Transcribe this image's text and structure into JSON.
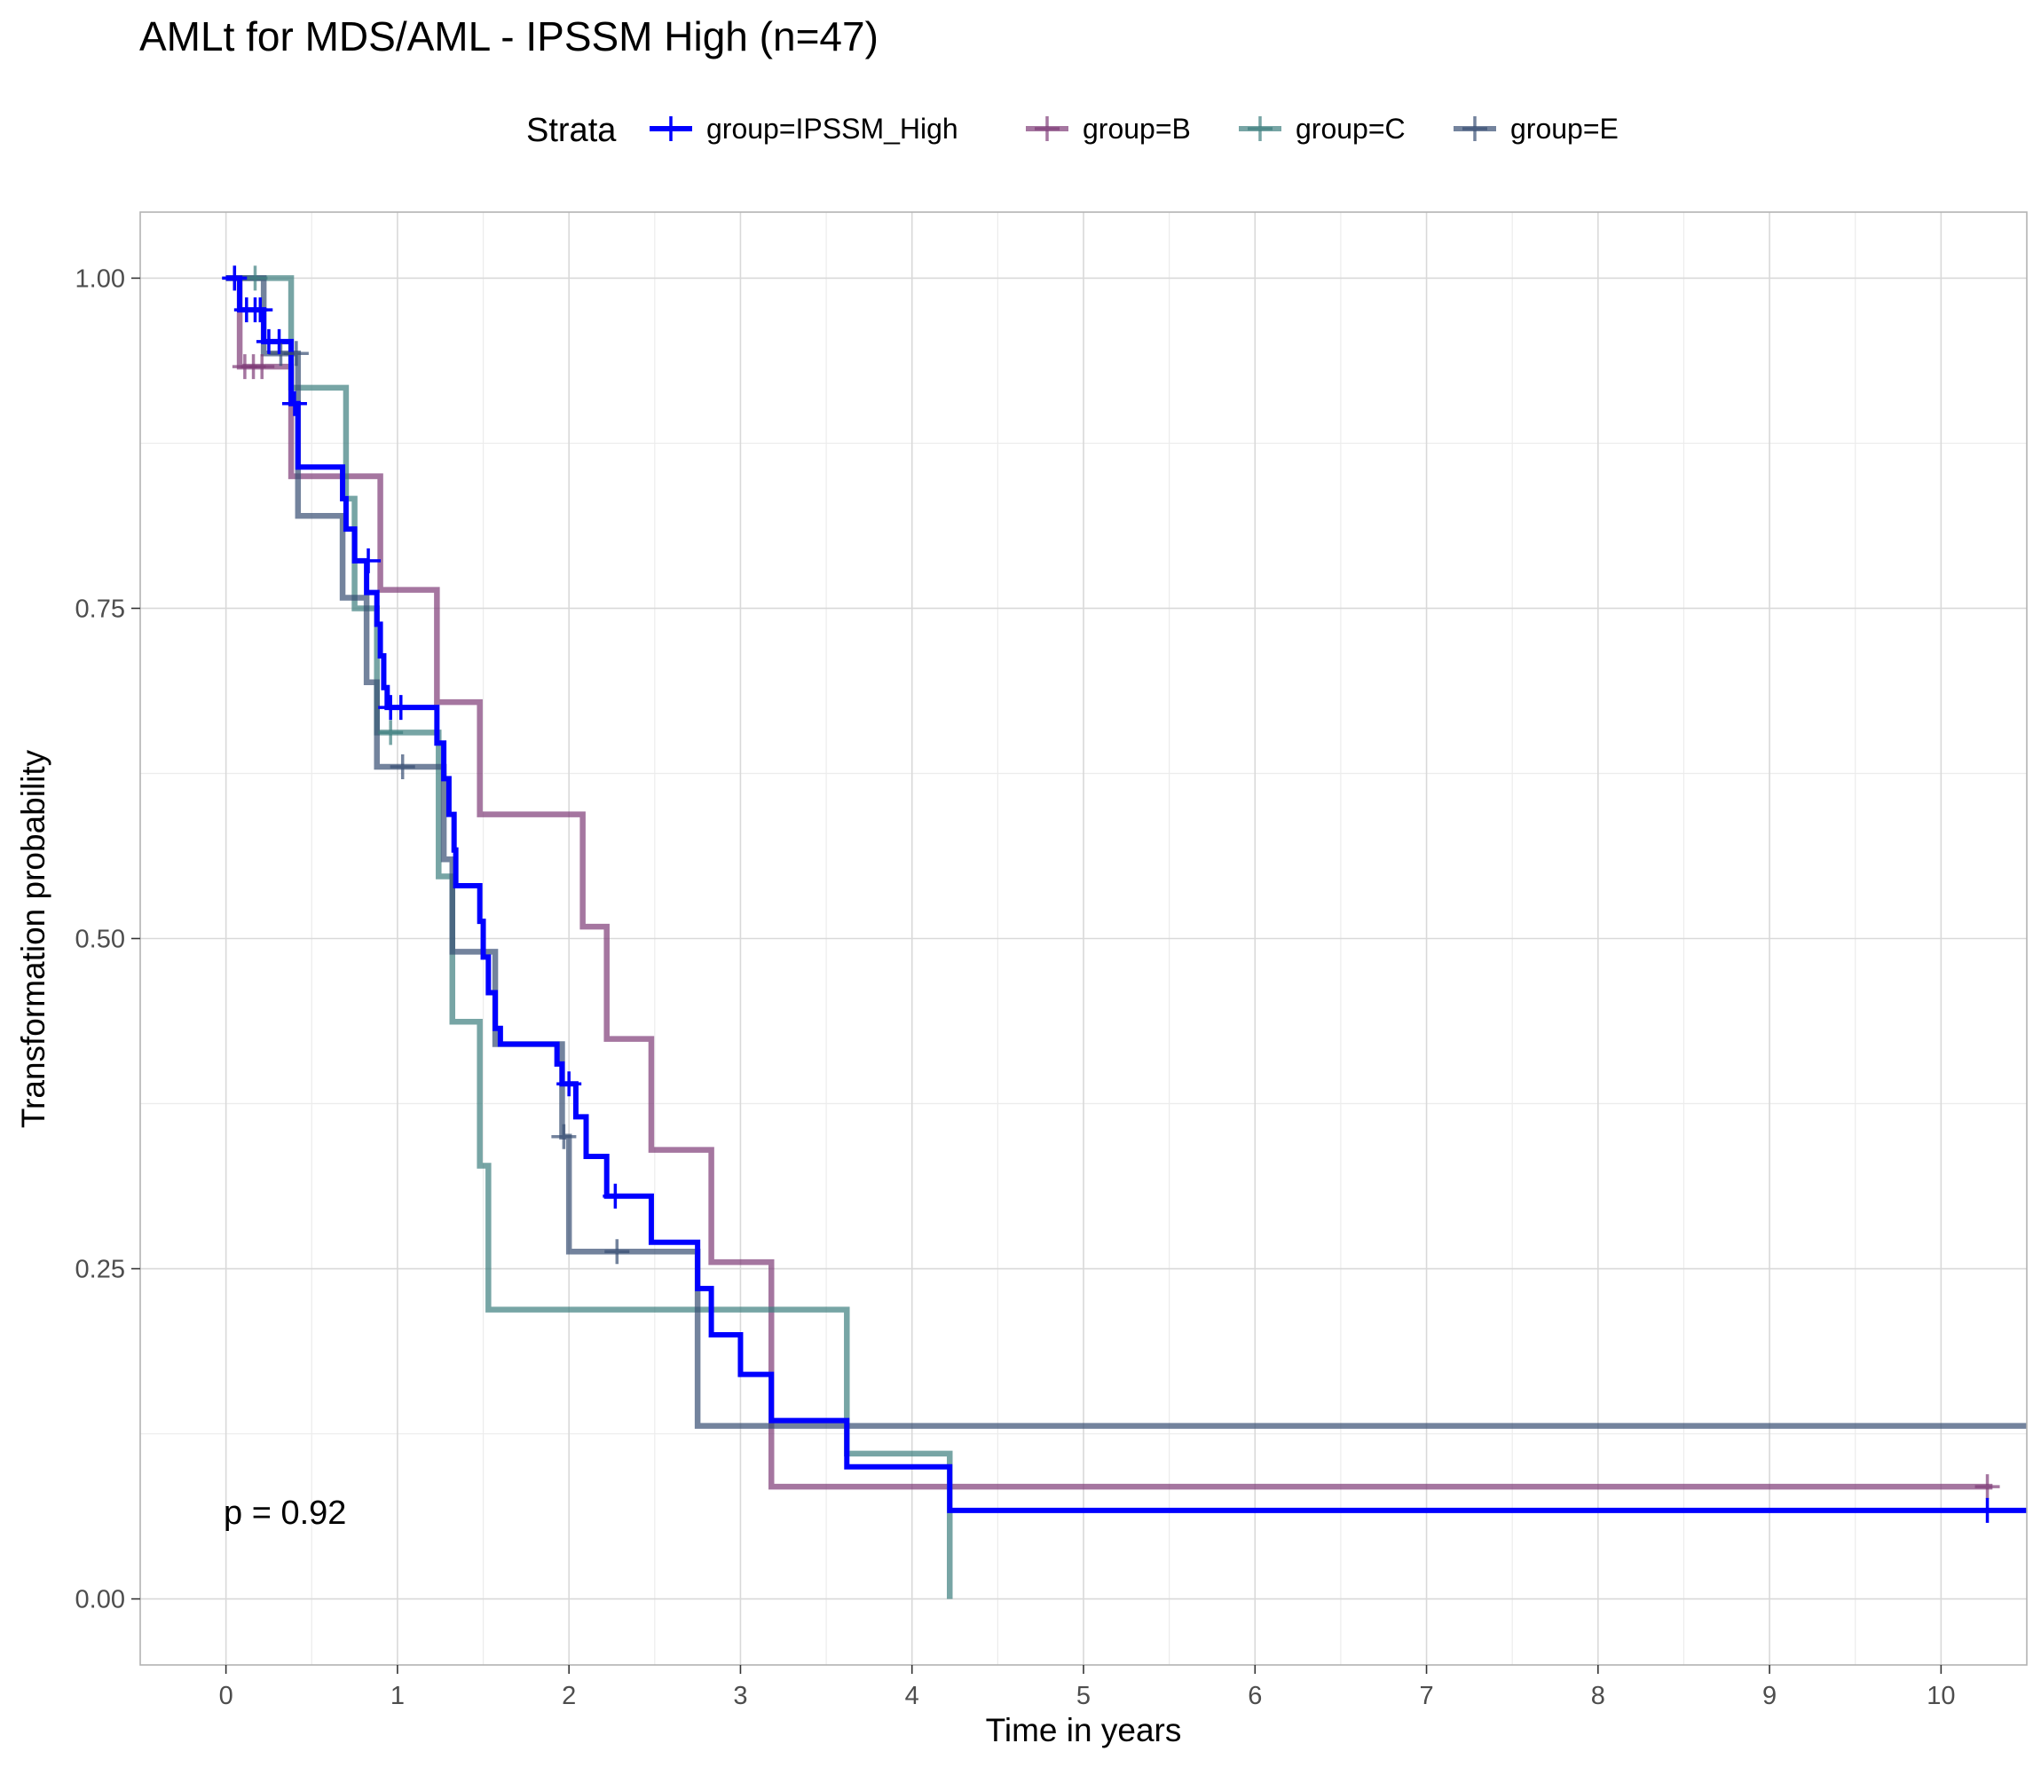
{
  "chart_data": {
    "type": "line",
    "subtype": "kaplan-meier step",
    "title": "AMLt for MDS/AML - IPSSM High (n=47)",
    "xlabel": "Time in years",
    "ylabel": "Transformation probability",
    "xlim": [
      -0.5,
      10.5
    ],
    "ylim": [
      -0.05,
      1.05
    ],
    "x_ticks": [
      0,
      1,
      2,
      3,
      4,
      5,
      6,
      7,
      8,
      9,
      10
    ],
    "x_tick_labels": [
      "0",
      "1",
      "2",
      "3",
      "4",
      "5",
      "6",
      "7",
      "8",
      "9",
      "10"
    ],
    "y_ticks": [
      0,
      0.25,
      0.5,
      0.75,
      1
    ],
    "y_tick_labels": [
      "0.00",
      "0.25",
      "0.50",
      "0.75",
      "1.00"
    ],
    "grid": true,
    "legend": {
      "title": "Strata",
      "position": "top"
    },
    "annotation": "p = 0.92",
    "series": [
      {
        "name": "group=IPSSM_High",
        "color": "#0000ff",
        "opacity": 1.0,
        "steps": [
          [
            0,
            1.0
          ],
          [
            0.08,
            0.976
          ],
          [
            0.18,
            0.976
          ],
          [
            0.22,
            0.952
          ],
          [
            0.38,
            0.905
          ],
          [
            0.42,
            0.857
          ],
          [
            0.68,
            0.833
          ],
          [
            0.7,
            0.81
          ],
          [
            0.75,
            0.786
          ],
          [
            0.82,
            0.762
          ],
          [
            0.88,
            0.738
          ],
          [
            0.9,
            0.714
          ],
          [
            0.92,
            0.69
          ],
          [
            0.94,
            0.675
          ],
          [
            1.23,
            0.648
          ],
          [
            1.27,
            0.621
          ],
          [
            1.3,
            0.594
          ],
          [
            1.33,
            0.567
          ],
          [
            1.34,
            0.54
          ],
          [
            1.48,
            0.513
          ],
          [
            1.5,
            0.486
          ],
          [
            1.53,
            0.459
          ],
          [
            1.57,
            0.432
          ],
          [
            1.6,
            0.42
          ],
          [
            1.93,
            0.405
          ],
          [
            1.96,
            0.39
          ],
          [
            2.04,
            0.365
          ],
          [
            2.1,
            0.335
          ],
          [
            2.22,
            0.305
          ],
          [
            2.48,
            0.27
          ],
          [
            2.75,
            0.235
          ],
          [
            2.83,
            0.2
          ],
          [
            3.0,
            0.17
          ],
          [
            3.18,
            0.135
          ],
          [
            3.62,
            0.1
          ],
          [
            4.22,
            0.067
          ],
          [
            10.5,
            0.067
          ]
        ],
        "censor_points": [
          [
            0.05,
            1.0
          ],
          [
            0.12,
            0.976
          ],
          [
            0.17,
            0.976
          ],
          [
            0.2,
            0.976
          ],
          [
            0.25,
            0.952
          ],
          [
            0.31,
            0.952
          ],
          [
            0.4,
            0.905
          ],
          [
            0.83,
            0.786
          ],
          [
            0.96,
            0.675
          ],
          [
            1.02,
            0.675
          ],
          [
            2.0,
            0.39
          ],
          [
            2.27,
            0.305
          ],
          [
            10.27,
            0.067
          ]
        ]
      },
      {
        "name": "group=B",
        "color": "#7f3c77",
        "opacity": 0.7,
        "steps": [
          [
            0,
            1.0
          ],
          [
            0.08,
            0.933
          ],
          [
            0.38,
            0.85
          ],
          [
            0.9,
            0.764
          ],
          [
            1.23,
            0.679
          ],
          [
            1.48,
            0.594
          ],
          [
            2.08,
            0.509
          ],
          [
            2.22,
            0.424
          ],
          [
            2.48,
            0.34
          ],
          [
            2.83,
            0.255
          ],
          [
            3.18,
            0.085
          ],
          [
            10.3,
            0.085
          ]
        ],
        "censor_points": [
          [
            0.11,
            0.933
          ],
          [
            0.16,
            0.933
          ],
          [
            0.21,
            0.933
          ],
          [
            10.27,
            0.085
          ]
        ]
      },
      {
        "name": "group=C",
        "color": "#3d7f7f",
        "opacity": 0.7,
        "steps": [
          [
            0,
            1.0
          ],
          [
            0.38,
            0.917
          ],
          [
            0.7,
            0.833
          ],
          [
            0.75,
            0.75
          ],
          [
            0.88,
            0.656
          ],
          [
            1.24,
            0.547
          ],
          [
            1.32,
            0.437
          ],
          [
            1.48,
            0.328
          ],
          [
            1.53,
            0.219
          ],
          [
            3.62,
            0.11
          ],
          [
            4.22,
            0.0
          ]
        ],
        "censor_points": [
          [
            0.17,
            1.0
          ],
          [
            0.96,
            0.656
          ]
        ]
      },
      {
        "name": "group=E",
        "color": "#374f73",
        "opacity": 0.7,
        "steps": [
          [
            0,
            1.0
          ],
          [
            0.22,
            0.943
          ],
          [
            0.42,
            0.82
          ],
          [
            0.68,
            0.758
          ],
          [
            0.82,
            0.694
          ],
          [
            0.88,
            0.63
          ],
          [
            1.27,
            0.56
          ],
          [
            1.32,
            0.49
          ],
          [
            1.57,
            0.42
          ],
          [
            1.96,
            0.35
          ],
          [
            2.0,
            0.263
          ],
          [
            2.75,
            0.131
          ],
          [
            10.5,
            0.131
          ]
        ],
        "censor_points": [
          [
            0.05,
            1.0
          ],
          [
            0.32,
            0.943
          ],
          [
            0.41,
            0.943
          ],
          [
            1.03,
            0.63
          ],
          [
            1.97,
            0.35
          ],
          [
            2.28,
            0.263
          ]
        ]
      }
    ]
  }
}
